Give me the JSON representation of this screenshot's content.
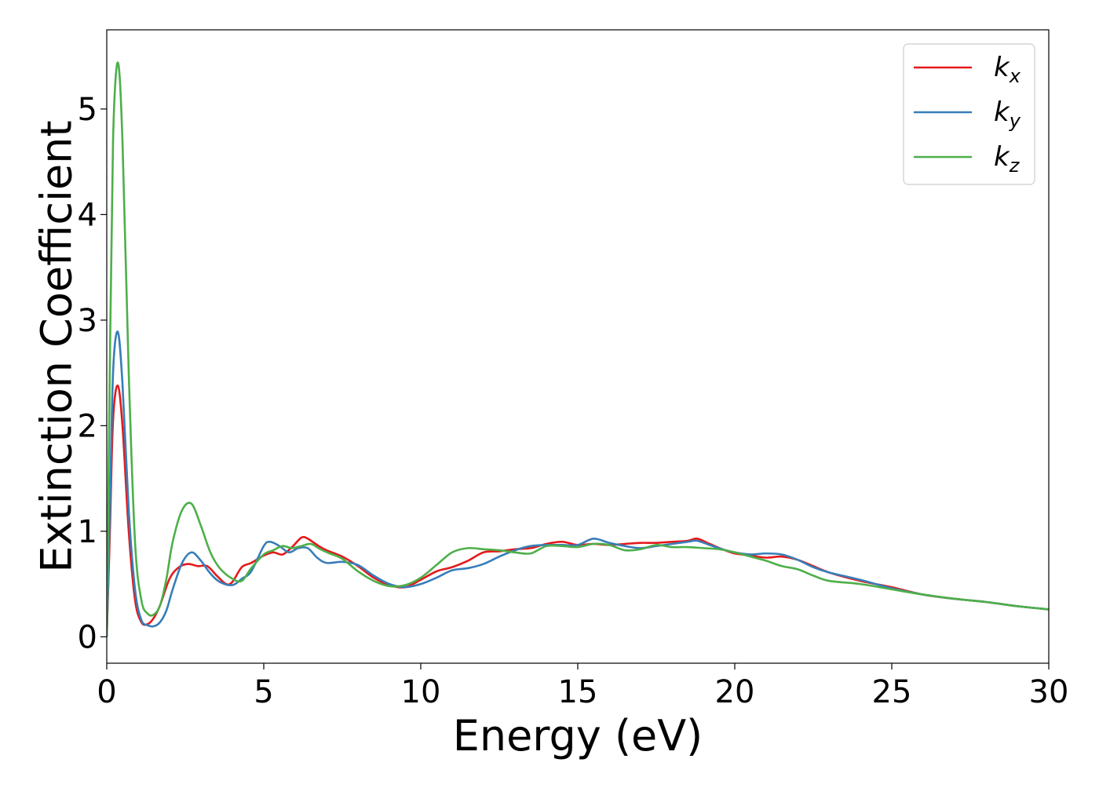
{
  "chart_data": {
    "type": "line",
    "title": "",
    "xlabel": "Energy (eV)",
    "ylabel": "Extinction Coefficient",
    "xlim": [
      0,
      30
    ],
    "ylim": [
      -0.25,
      5.75
    ],
    "xticks": [
      0,
      5,
      10,
      15,
      20,
      25,
      30
    ],
    "xtick_labels": [
      "0",
      "5",
      "10",
      "15",
      "20",
      "25",
      "30"
    ],
    "yticks": [
      0,
      1,
      2,
      3,
      4,
      5
    ],
    "ytick_labels": [
      "0",
      "1",
      "2",
      "3",
      "4",
      "5"
    ],
    "grid": false,
    "legend_position": "top-right",
    "series": [
      {
        "name": "k_x",
        "legend_main": "k",
        "legend_sub": "x",
        "color": "#e41a1c",
        "x": [
          0,
          0.1,
          0.2,
          0.35,
          0.5,
          0.7,
          0.9,
          1.1,
          1.3,
          1.5,
          1.7,
          2.0,
          2.3,
          2.6,
          2.9,
          3.2,
          3.5,
          3.8,
          4.0,
          4.3,
          4.6,
          5.0,
          5.3,
          5.6,
          5.9,
          6.2,
          6.4,
          6.7,
          7.0,
          7.5,
          8.0,
          8.5,
          9.0,
          9.5,
          10.0,
          10.5,
          11.0,
          11.5,
          12.0,
          12.5,
          13.0,
          13.5,
          14.0,
          14.5,
          15.0,
          15.5,
          16.0,
          16.5,
          17.0,
          17.5,
          18.0,
          18.5,
          18.8,
          19.2,
          19.6,
          20.0,
          20.5,
          21.0,
          21.5,
          22.0,
          22.5,
          23.0,
          24.0,
          25.0,
          26.0,
          27.0,
          28.0,
          29.0,
          30.0
        ],
        "y": [
          0,
          1.0,
          2.05,
          2.38,
          2.0,
          1.0,
          0.35,
          0.14,
          0.12,
          0.18,
          0.3,
          0.55,
          0.66,
          0.69,
          0.67,
          0.67,
          0.58,
          0.5,
          0.52,
          0.66,
          0.7,
          0.77,
          0.8,
          0.78,
          0.85,
          0.94,
          0.93,
          0.87,
          0.82,
          0.76,
          0.67,
          0.56,
          0.49,
          0.47,
          0.54,
          0.62,
          0.66,
          0.72,
          0.8,
          0.81,
          0.83,
          0.84,
          0.88,
          0.9,
          0.87,
          0.88,
          0.87,
          0.88,
          0.89,
          0.89,
          0.9,
          0.91,
          0.93,
          0.88,
          0.83,
          0.79,
          0.77,
          0.75,
          0.76,
          0.73,
          0.67,
          0.61,
          0.53,
          0.47,
          0.4,
          0.36,
          0.33,
          0.29,
          0.26
        ]
      },
      {
        "name": "k_y",
        "legend_main": "k",
        "legend_sub": "y",
        "color": "#377eb8",
        "x": [
          0,
          0.1,
          0.2,
          0.35,
          0.5,
          0.7,
          0.9,
          1.1,
          1.3,
          1.5,
          1.7,
          1.9,
          2.1,
          2.4,
          2.7,
          3.0,
          3.3,
          3.6,
          4.0,
          4.3,
          4.6,
          5.0,
          5.2,
          5.5,
          5.8,
          6.1,
          6.4,
          6.7,
          7.0,
          7.5,
          8.0,
          8.5,
          9.0,
          9.5,
          10.0,
          10.5,
          11.0,
          11.5,
          12.0,
          12.5,
          13.0,
          13.5,
          14.0,
          14.5,
          15.0,
          15.5,
          16.0,
          16.5,
          17.0,
          17.5,
          18.0,
          18.5,
          18.8,
          19.2,
          19.6,
          20.0,
          20.5,
          21.0,
          21.5,
          22.0,
          22.5,
          23.0,
          24.0,
          25.0,
          26.0,
          27.0,
          28.0,
          29.0,
          30.0
        ],
        "y": [
          0,
          1.2,
          2.5,
          2.89,
          2.4,
          1.2,
          0.45,
          0.16,
          0.11,
          0.1,
          0.14,
          0.25,
          0.45,
          0.7,
          0.8,
          0.72,
          0.6,
          0.52,
          0.49,
          0.55,
          0.62,
          0.86,
          0.9,
          0.86,
          0.8,
          0.84,
          0.84,
          0.75,
          0.7,
          0.71,
          0.68,
          0.58,
          0.5,
          0.47,
          0.5,
          0.56,
          0.63,
          0.65,
          0.69,
          0.76,
          0.82,
          0.86,
          0.87,
          0.87,
          0.87,
          0.93,
          0.89,
          0.86,
          0.84,
          0.86,
          0.88,
          0.9,
          0.91,
          0.87,
          0.83,
          0.8,
          0.78,
          0.79,
          0.78,
          0.73,
          0.66,
          0.61,
          0.54,
          0.46,
          0.4,
          0.36,
          0.33,
          0.29,
          0.26
        ]
      },
      {
        "name": "k_z",
        "legend_main": "k",
        "legend_sub": "z",
        "color": "#4daf4a",
        "x": [
          0,
          0.1,
          0.2,
          0.35,
          0.5,
          0.7,
          0.9,
          1.1,
          1.3,
          1.5,
          1.7,
          1.9,
          2.1,
          2.4,
          2.7,
          3.0,
          3.3,
          3.6,
          4.0,
          4.3,
          4.6,
          5.0,
          5.3,
          5.6,
          5.9,
          6.2,
          6.5,
          6.8,
          7.1,
          7.5,
          8.0,
          8.5,
          9.0,
          9.5,
          10.0,
          10.5,
          11.0,
          11.5,
          12.0,
          12.5,
          13.0,
          13.5,
          14.0,
          14.5,
          15.0,
          15.5,
          16.0,
          16.5,
          17.0,
          17.5,
          18.0,
          18.5,
          19.0,
          19.5,
          20.0,
          20.5,
          21.0,
          21.5,
          22.0,
          22.5,
          23.0,
          24.0,
          25.0,
          26.0,
          27.0,
          28.0,
          29.0,
          30.0
        ],
        "y": [
          0,
          2.6,
          4.7,
          5.44,
          4.7,
          2.5,
          0.9,
          0.35,
          0.22,
          0.21,
          0.3,
          0.55,
          0.9,
          1.2,
          1.26,
          1.05,
          0.8,
          0.65,
          0.55,
          0.53,
          0.65,
          0.78,
          0.82,
          0.86,
          0.84,
          0.86,
          0.88,
          0.83,
          0.79,
          0.74,
          0.62,
          0.53,
          0.48,
          0.49,
          0.56,
          0.68,
          0.8,
          0.84,
          0.83,
          0.82,
          0.8,
          0.79,
          0.86,
          0.86,
          0.85,
          0.88,
          0.87,
          0.82,
          0.83,
          0.87,
          0.85,
          0.85,
          0.84,
          0.83,
          0.8,
          0.76,
          0.72,
          0.67,
          0.64,
          0.58,
          0.53,
          0.5,
          0.45,
          0.4,
          0.36,
          0.33,
          0.29,
          0.26
        ]
      }
    ]
  }
}
